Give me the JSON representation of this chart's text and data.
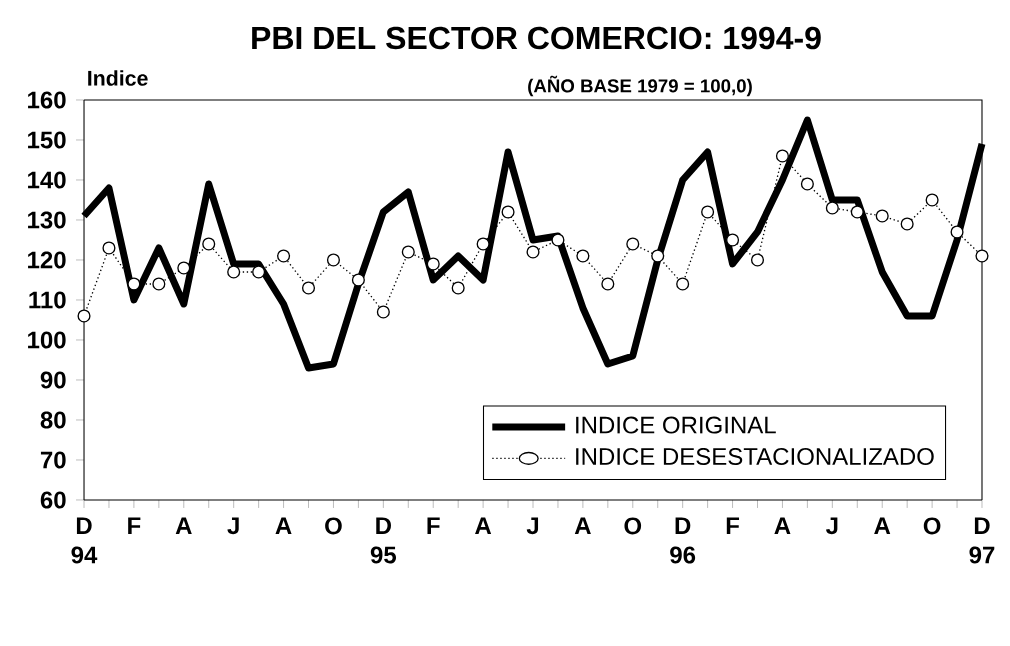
{
  "chart_data": {
    "type": "line",
    "title": "PBI DEL SECTOR COMERCIO: 1994-9",
    "subtitle": "(AÑO BASE 1979 = 100,0)",
    "ylabel": "Indice",
    "categories": [
      "D 94",
      null,
      "F",
      null,
      "A",
      null,
      "J",
      null,
      "A",
      null,
      "O",
      null,
      "D 95",
      null,
      "F",
      null,
      "A",
      null,
      "J",
      null,
      "A",
      null,
      "O",
      null,
      "D 96",
      null,
      "F",
      null,
      "A",
      null,
      "J",
      null,
      "A",
      null,
      "O",
      null,
      "D 97"
    ],
    "series": [
      {
        "name": "INDICE ORIGINAL",
        "color": "#000000",
        "marker": "none",
        "line_style": "solid",
        "values": [
          131,
          138,
          110,
          123,
          109,
          139,
          119,
          119,
          109,
          93,
          94,
          114,
          132,
          137,
          115,
          121,
          115,
          147,
          125,
          126,
          108,
          94,
          96,
          120,
          140,
          147,
          119,
          127,
          140,
          155,
          135,
          135,
          117,
          106,
          106,
          125,
          149
        ]
      },
      {
        "name": "INDICE DESESTACIONALIZADO",
        "color": "#000000",
        "marker": "circle",
        "line_style": "dotted",
        "values": [
          106,
          123,
          114,
          114,
          118,
          124,
          117,
          117,
          121,
          113,
          120,
          115,
          107,
          122,
          119,
          113,
          124,
          132,
          122,
          125,
          121,
          114,
          124,
          121,
          114,
          132,
          125,
          120,
          146,
          139,
          133,
          132,
          131,
          129,
          135,
          127,
          121
        ]
      }
    ],
    "ylim": [
      60,
      160
    ],
    "yticks": [
      60,
      70,
      80,
      90,
      100,
      110,
      120,
      130,
      140,
      150,
      160
    ],
    "grid": false,
    "legend": "bottom right"
  }
}
